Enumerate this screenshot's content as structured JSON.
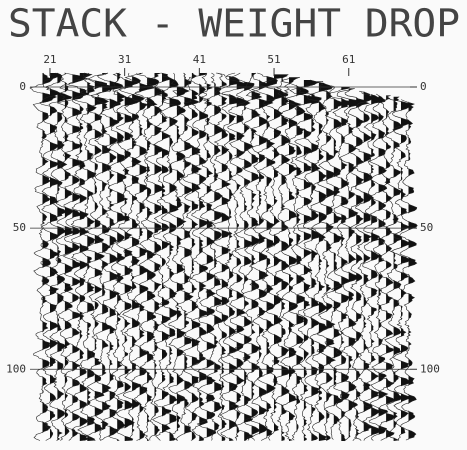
{
  "chart_data": {
    "type": "seismic",
    "title": "STACK - WEIGHT DROP",
    "xlim": [
      19.4,
      69.2
    ],
    "xticks": [
      21,
      31,
      41,
      51,
      61
    ],
    "ylim": [
      0,
      124
    ],
    "yticks": [
      0,
      50,
      100
    ],
    "y2lim": [
      0,
      124
    ],
    "y2ticks": [
      0,
      50,
      100
    ]
  }
}
